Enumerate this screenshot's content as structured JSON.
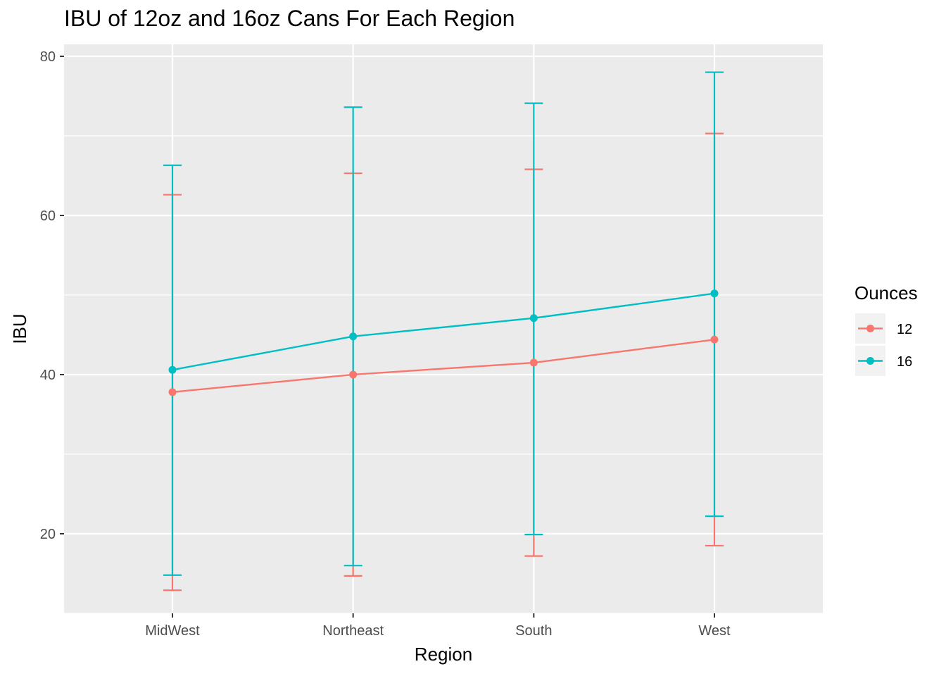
{
  "chart_data": {
    "type": "line",
    "title": "IBU of 12oz and 16oz Cans For Each Region",
    "xlabel": "Region",
    "ylabel": "IBU",
    "categories": [
      "MidWest",
      "Northeast",
      "South",
      "West"
    ],
    "ylim": [
      10,
      81.5
    ],
    "yticks": [
      20,
      40,
      60,
      80
    ],
    "grid": true,
    "error_bars": true,
    "legend": {
      "title": "Ounces",
      "position": "right"
    },
    "series": [
      {
        "name": "12",
        "color": "#F8766D",
        "values": [
          37.8,
          40.0,
          41.5,
          44.4
        ],
        "lower": [
          12.9,
          14.7,
          17.2,
          18.5
        ],
        "upper": [
          62.6,
          65.3,
          65.8,
          70.3
        ]
      },
      {
        "name": "16",
        "color": "#00BFC4",
        "values": [
          40.6,
          44.8,
          47.1,
          50.2
        ],
        "lower": [
          14.8,
          16.0,
          19.9,
          22.2
        ],
        "upper": [
          66.3,
          73.6,
          74.1,
          78.0
        ]
      }
    ]
  }
}
